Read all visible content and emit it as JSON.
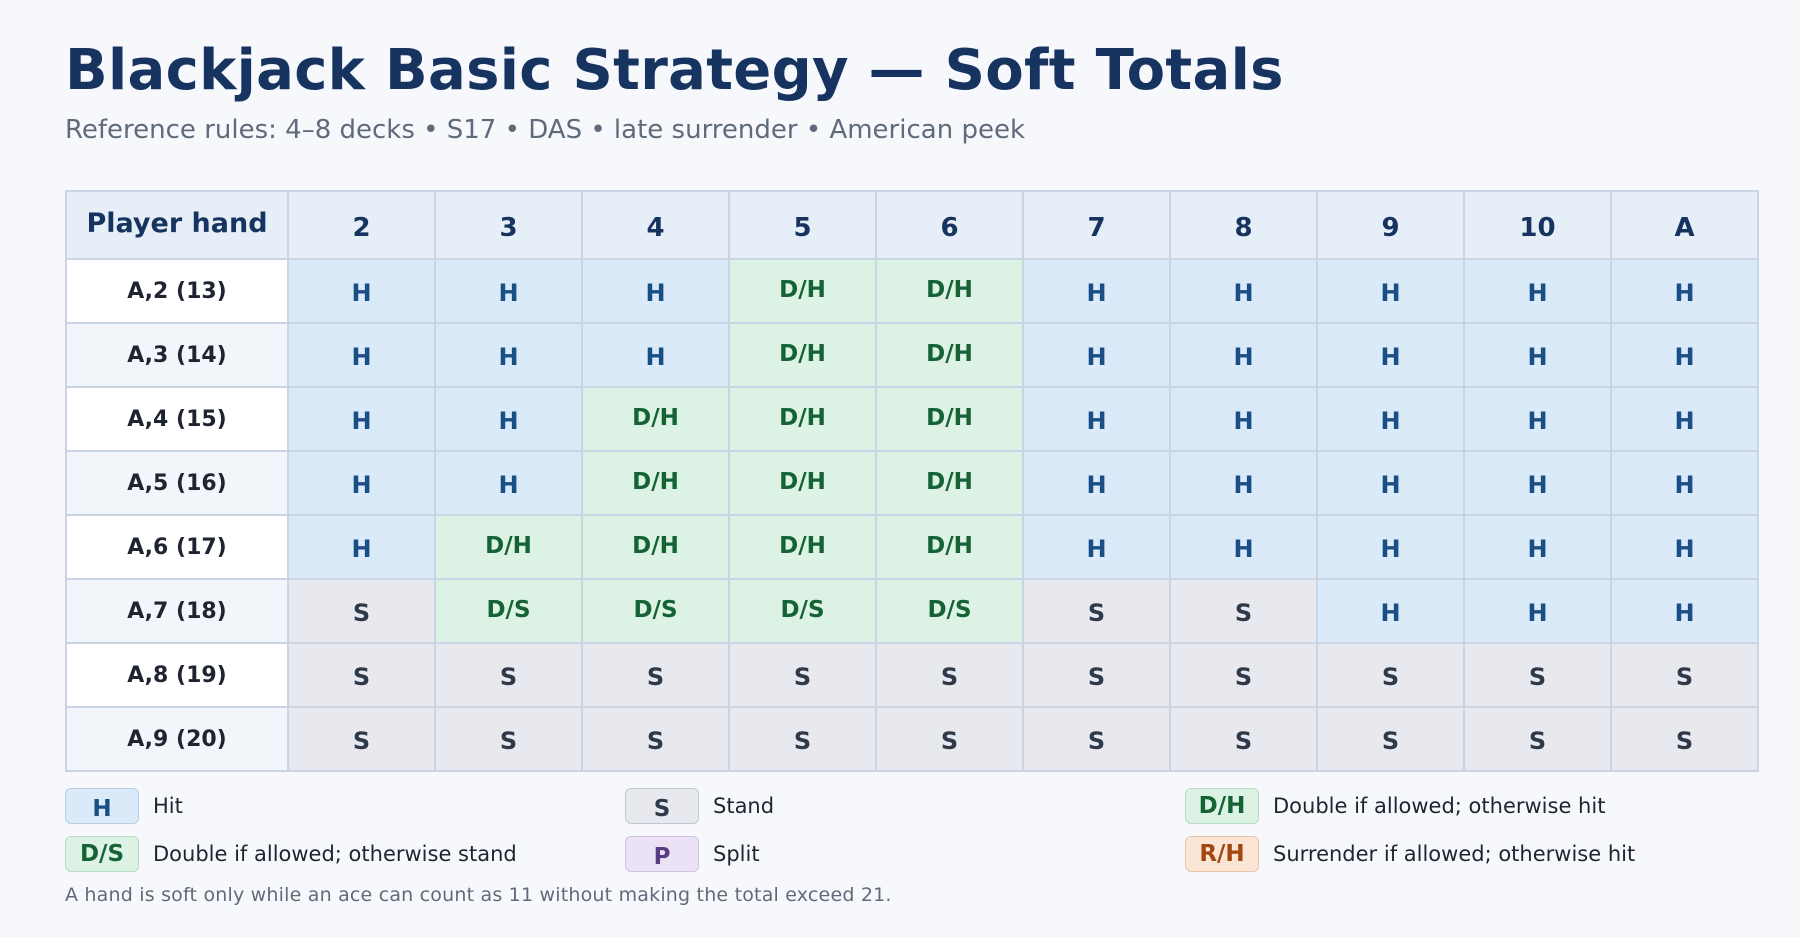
{
  "title": "Blackjack Basic Strategy — Soft Totals",
  "subtitle": "Reference rules: 4–8 decks • S17 • DAS • late surrender • American peek",
  "table": {
    "corner_label": "Player hand",
    "dealer_upcards": [
      "2",
      "3",
      "4",
      "5",
      "6",
      "7",
      "8",
      "9",
      "10",
      "A"
    ],
    "rows": [
      {
        "hand": "A,2 (13)",
        "actions": [
          "H",
          "H",
          "H",
          "D/H",
          "D/H",
          "H",
          "H",
          "H",
          "H",
          "H"
        ]
      },
      {
        "hand": "A,3 (14)",
        "actions": [
          "H",
          "H",
          "H",
          "D/H",
          "D/H",
          "H",
          "H",
          "H",
          "H",
          "H"
        ]
      },
      {
        "hand": "A,4 (15)",
        "actions": [
          "H",
          "H",
          "D/H",
          "D/H",
          "D/H",
          "H",
          "H",
          "H",
          "H",
          "H"
        ]
      },
      {
        "hand": "A,5 (16)",
        "actions": [
          "H",
          "H",
          "D/H",
          "D/H",
          "D/H",
          "H",
          "H",
          "H",
          "H",
          "H"
        ]
      },
      {
        "hand": "A,6 (17)",
        "actions": [
          "H",
          "D/H",
          "D/H",
          "D/H",
          "D/H",
          "H",
          "H",
          "H",
          "H",
          "H"
        ]
      },
      {
        "hand": "A,7 (18)",
        "actions": [
          "S",
          "D/S",
          "D/S",
          "D/S",
          "D/S",
          "S",
          "S",
          "H",
          "H",
          "H"
        ]
      },
      {
        "hand": "A,8 (19)",
        "actions": [
          "S",
          "S",
          "S",
          "S",
          "S",
          "S",
          "S",
          "S",
          "S",
          "S"
        ]
      },
      {
        "hand": "A,9 (20)",
        "actions": [
          "S",
          "S",
          "S",
          "S",
          "S",
          "S",
          "S",
          "S",
          "S",
          "S"
        ]
      }
    ]
  },
  "legend": [
    {
      "code": "H",
      "label": "Hit",
      "style": "H"
    },
    {
      "code": "S",
      "label": "Stand",
      "style": "S"
    },
    {
      "code": "D/H",
      "label": "Double if allowed; otherwise hit",
      "style": "DH"
    },
    {
      "code": "D/S",
      "label": "Double if allowed; otherwise stand",
      "style": "DS"
    },
    {
      "code": "P",
      "label": "Split",
      "style": "P"
    },
    {
      "code": "R/H",
      "label": "Surrender if allowed; otherwise hit",
      "style": "RH"
    }
  ],
  "footnote": "A hand is soft only while an ace can count as 11 without making the total exceed 21.",
  "colors": {
    "title": "#17335f",
    "hit_bg": "#dbeaf9",
    "stand_bg": "#e7e9ee",
    "double_bg": "#dcf2e4",
    "split_bg": "#ebe3f5",
    "surrender_bg": "#fbe5d4"
  }
}
